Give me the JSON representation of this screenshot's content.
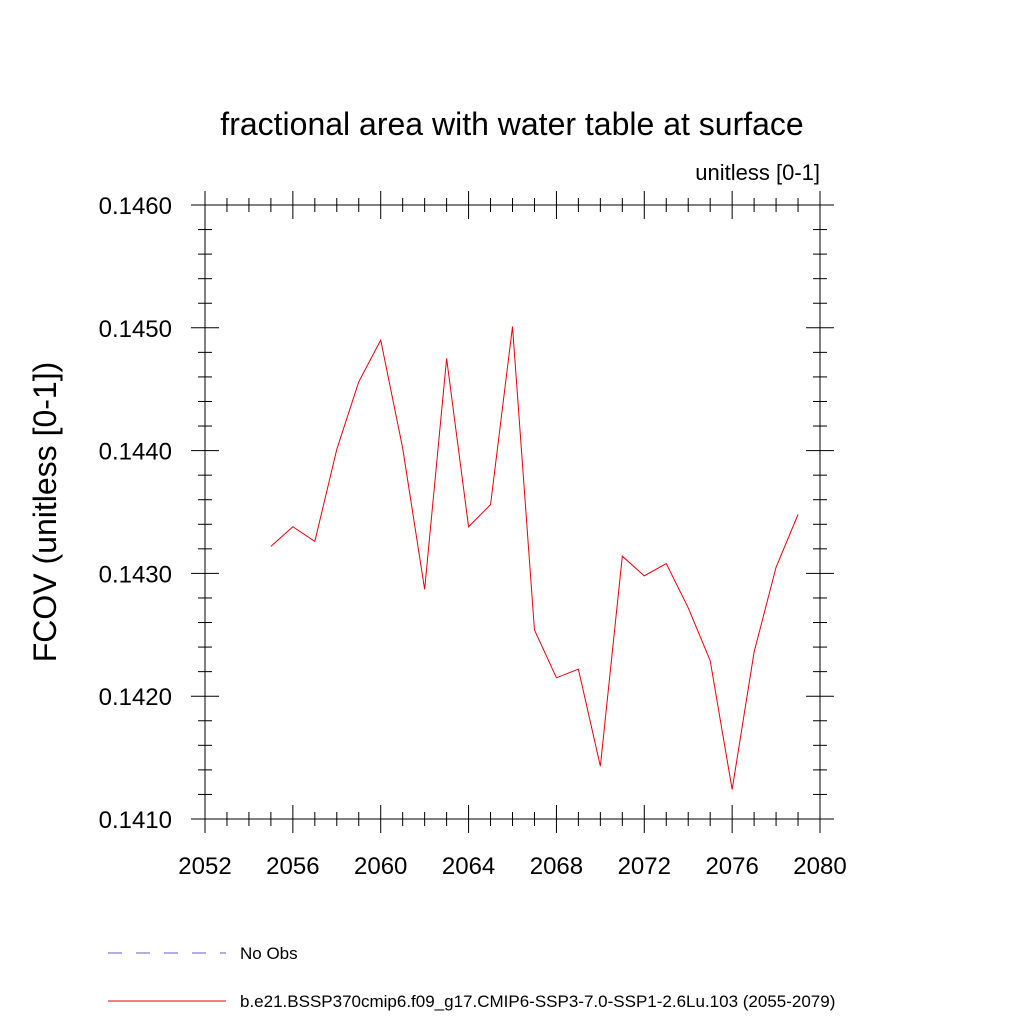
{
  "chart_data": {
    "type": "line",
    "title": "fractional area with water table at surface",
    "subtitle": "unitless [0-1]",
    "xlabel": "",
    "ylabel": "FCOV  (unitless [0-1])",
    "xlim": [
      2052,
      2080
    ],
    "ylim": [
      0.141,
      0.146
    ],
    "xticks": [
      "2052",
      "2056",
      "2060",
      "2064",
      "2068",
      "2072",
      "2076",
      "2080"
    ],
    "yticks": [
      "0.1410",
      "0.1420",
      "0.1430",
      "0.1440",
      "0.1450",
      "0.1460"
    ],
    "grid": false,
    "legend_position": "bottom",
    "x": [
      2055,
      2056,
      2057,
      2058,
      2059,
      2060,
      2061,
      2062,
      2063,
      2064,
      2065,
      2066,
      2067,
      2068,
      2069,
      2070,
      2071,
      2072,
      2073,
      2074,
      2075,
      2076,
      2077,
      2078,
      2079
    ],
    "series": [
      {
        "name": "b.e21.BSSP370cmip6.f09_g17.CMIP6-SSP3-7.0-SSP1-2.6Lu.103 (2055-2079)",
        "color": "#e8000b",
        "style": "solid",
        "values": [
          0.14322,
          0.14338,
          0.14326,
          0.14401,
          0.14456,
          0.1449,
          0.14402,
          0.14287,
          0.14475,
          0.14338,
          0.14356,
          0.14501,
          0.14254,
          0.14215,
          0.14222,
          0.14143,
          0.14314,
          0.14298,
          0.14308,
          0.14272,
          0.14229,
          0.14124,
          0.14236,
          0.14305,
          0.14348
        ]
      }
    ],
    "legend": [
      {
        "label": "No Obs",
        "color": "#6a5acd",
        "style": "dashed"
      },
      {
        "label": "b.e21.BSSP370cmip6.f09_g17.CMIP6-SSP3-7.0-SSP1-2.6Lu.103 (2055-2079)",
        "color": "#e8000b",
        "style": "solid"
      }
    ]
  }
}
